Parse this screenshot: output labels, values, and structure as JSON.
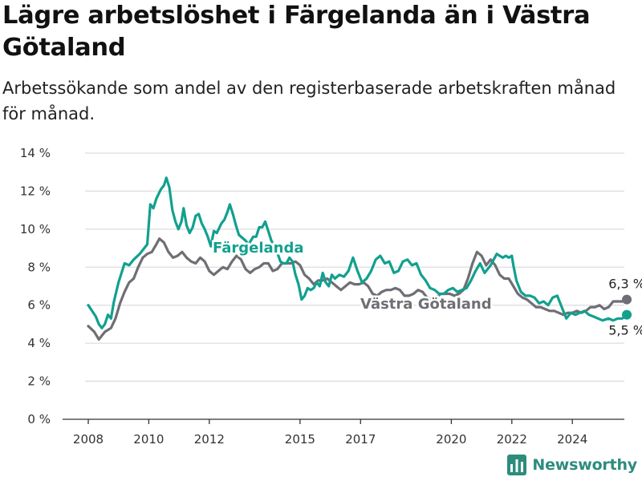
{
  "title": "Lägre arbetslöshet i Färgelanda än i Västra Götaland",
  "subtitle": "Arbetssökande som andel av den registerbaserade arbetskraften månad för månad.",
  "brand": "Newsworthy",
  "colors": {
    "Färgelanda": "#12a08f",
    "Västra Götaland": "#6f6e74",
    "brand": "#2e8c7c"
  },
  "chart_data": {
    "type": "line",
    "title": "Lägre arbetslöshet i Färgelanda än i Västra Götaland",
    "subtitle": "Arbetssökande som andel av den registerbaserade arbetskraften månad för månad.",
    "xlabel": "",
    "ylabel": "",
    "y_unit": "%",
    "ylim": [
      0,
      14
    ],
    "y_ticks": [
      0,
      2,
      4,
      6,
      8,
      10,
      12,
      14
    ],
    "y_tick_labels": [
      "0 %",
      "2 %",
      "4 %",
      "6 %",
      "8 %",
      "10 %",
      "12 %",
      "14 %"
    ],
    "x_ticks": [
      2008,
      2010,
      2012,
      2015,
      2017,
      2020,
      2022,
      2024
    ],
    "grid": true,
    "legend": "inline labels",
    "series": [
      {
        "name": "Färgelanda",
        "end_label": "5,5 %",
        "points": [
          [
            2008.0,
            6.0
          ],
          [
            2008.25,
            5.4
          ],
          [
            2008.35,
            5.0
          ],
          [
            2008.45,
            4.8
          ],
          [
            2008.55,
            5.0
          ],
          [
            2008.65,
            5.5
          ],
          [
            2008.75,
            5.3
          ],
          [
            2008.85,
            6.2
          ],
          [
            2009.0,
            7.2
          ],
          [
            2009.2,
            8.2
          ],
          [
            2009.35,
            8.1
          ],
          [
            2009.5,
            8.4
          ],
          [
            2009.7,
            8.7
          ],
          [
            2009.95,
            9.2
          ],
          [
            2010.05,
            11.3
          ],
          [
            2010.15,
            11.1
          ],
          [
            2010.25,
            11.6
          ],
          [
            2010.4,
            12.1
          ],
          [
            2010.5,
            12.3
          ],
          [
            2010.58,
            12.7
          ],
          [
            2010.68,
            12.2
          ],
          [
            2010.78,
            11.0
          ],
          [
            2010.88,
            10.4
          ],
          [
            2010.98,
            10.0
          ],
          [
            2011.08,
            10.4
          ],
          [
            2011.15,
            11.1
          ],
          [
            2011.25,
            10.2
          ],
          [
            2011.35,
            9.8
          ],
          [
            2011.45,
            10.1
          ],
          [
            2011.55,
            10.7
          ],
          [
            2011.65,
            10.8
          ],
          [
            2011.75,
            10.3
          ],
          [
            2011.85,
            10.0
          ],
          [
            2011.95,
            9.6
          ],
          [
            2012.05,
            9.1
          ],
          [
            2012.15,
            9.9
          ],
          [
            2012.25,
            9.8
          ],
          [
            2012.4,
            10.3
          ],
          [
            2012.5,
            10.5
          ],
          [
            2012.6,
            10.9
          ],
          [
            2012.68,
            11.3
          ],
          [
            2012.78,
            10.8
          ],
          [
            2012.88,
            10.2
          ],
          [
            2012.98,
            9.7
          ],
          [
            2013.2,
            9.4
          ],
          [
            2013.3,
            9.2
          ],
          [
            2013.45,
            9.6
          ],
          [
            2013.55,
            9.6
          ],
          [
            2013.65,
            10.1
          ],
          [
            2013.75,
            10.1
          ],
          [
            2013.85,
            10.4
          ],
          [
            2013.95,
            9.9
          ],
          [
            2014.05,
            9.4
          ],
          [
            2014.2,
            9.0
          ],
          [
            2014.35,
            8.3
          ],
          [
            2014.45,
            8.2
          ],
          [
            2014.55,
            8.2
          ],
          [
            2014.65,
            8.5
          ],
          [
            2014.75,
            8.3
          ],
          [
            2014.85,
            7.6
          ],
          [
            2014.95,
            7.1
          ],
          [
            2015.05,
            6.3
          ],
          [
            2015.15,
            6.5
          ],
          [
            2015.25,
            6.9
          ],
          [
            2015.35,
            6.8
          ],
          [
            2015.45,
            6.9
          ],
          [
            2015.55,
            7.2
          ],
          [
            2015.65,
            7.0
          ],
          [
            2015.75,
            7.7
          ],
          [
            2015.85,
            7.2
          ],
          [
            2015.95,
            7.0
          ],
          [
            2016.05,
            7.6
          ],
          [
            2016.15,
            7.4
          ],
          [
            2016.3,
            7.6
          ],
          [
            2016.45,
            7.5
          ],
          [
            2016.6,
            7.8
          ],
          [
            2016.75,
            8.5
          ],
          [
            2016.9,
            7.8
          ],
          [
            2017.05,
            7.2
          ],
          [
            2017.2,
            7.4
          ],
          [
            2017.35,
            7.8
          ],
          [
            2017.5,
            8.4
          ],
          [
            2017.65,
            8.6
          ],
          [
            2017.8,
            8.2
          ],
          [
            2017.95,
            8.3
          ],
          [
            2018.1,
            7.7
          ],
          [
            2018.25,
            7.8
          ],
          [
            2018.4,
            8.3
          ],
          [
            2018.55,
            8.4
          ],
          [
            2018.7,
            8.1
          ],
          [
            2018.85,
            8.2
          ],
          [
            2019.0,
            7.6
          ],
          [
            2019.15,
            7.3
          ],
          [
            2019.3,
            6.9
          ],
          [
            2019.45,
            6.8
          ],
          [
            2019.6,
            6.6
          ],
          [
            2019.75,
            6.6
          ],
          [
            2019.9,
            6.8
          ],
          [
            2020.05,
            6.9
          ],
          [
            2020.2,
            6.7
          ],
          [
            2020.35,
            6.8
          ],
          [
            2020.5,
            6.9
          ],
          [
            2020.65,
            7.3
          ],
          [
            2020.8,
            7.8
          ],
          [
            2020.95,
            8.2
          ],
          [
            2021.1,
            7.7
          ],
          [
            2021.2,
            7.9
          ],
          [
            2021.3,
            8.1
          ],
          [
            2021.4,
            8.4
          ],
          [
            2021.5,
            8.7
          ],
          [
            2021.6,
            8.6
          ],
          [
            2021.7,
            8.5
          ],
          [
            2021.8,
            8.6
          ],
          [
            2021.9,
            8.5
          ],
          [
            2022.0,
            8.6
          ],
          [
            2022.05,
            8.1
          ],
          [
            2022.15,
            7.3
          ],
          [
            2022.3,
            6.7
          ],
          [
            2022.45,
            6.5
          ],
          [
            2022.6,
            6.5
          ],
          [
            2022.75,
            6.4
          ],
          [
            2022.9,
            6.1
          ],
          [
            2023.05,
            6.2
          ],
          [
            2023.2,
            6.0
          ],
          [
            2023.35,
            6.4
          ],
          [
            2023.5,
            6.5
          ],
          [
            2023.65,
            5.9
          ],
          [
            2023.8,
            5.3
          ],
          [
            2023.95,
            5.6
          ],
          [
            2024.1,
            5.5
          ],
          [
            2024.25,
            5.6
          ],
          [
            2024.4,
            5.7
          ],
          [
            2024.55,
            5.5
          ],
          [
            2024.7,
            5.4
          ],
          [
            2024.85,
            5.3
          ],
          [
            2025.0,
            5.2
          ],
          [
            2025.2,
            5.3
          ],
          [
            2025.35,
            5.2
          ],
          [
            2025.5,
            5.3
          ],
          [
            2025.65,
            5.3
          ],
          [
            2025.8,
            5.5
          ]
        ]
      },
      {
        "name": "Västra Götaland",
        "end_label": "6,3 %",
        "points": [
          [
            2008.0,
            4.9
          ],
          [
            2008.2,
            4.6
          ],
          [
            2008.35,
            4.2
          ],
          [
            2008.55,
            4.6
          ],
          [
            2008.75,
            4.8
          ],
          [
            2008.9,
            5.3
          ],
          [
            2009.05,
            6.1
          ],
          [
            2009.2,
            6.7
          ],
          [
            2009.35,
            7.2
          ],
          [
            2009.5,
            7.4
          ],
          [
            2009.65,
            8.0
          ],
          [
            2009.8,
            8.5
          ],
          [
            2009.95,
            8.7
          ],
          [
            2010.1,
            8.8
          ],
          [
            2010.25,
            9.2
          ],
          [
            2010.35,
            9.5
          ],
          [
            2010.5,
            9.3
          ],
          [
            2010.65,
            8.8
          ],
          [
            2010.8,
            8.5
          ],
          [
            2010.95,
            8.6
          ],
          [
            2011.1,
            8.8
          ],
          [
            2011.25,
            8.5
          ],
          [
            2011.4,
            8.3
          ],
          [
            2011.55,
            8.2
          ],
          [
            2011.7,
            8.5
          ],
          [
            2011.85,
            8.3
          ],
          [
            2012.0,
            7.8
          ],
          [
            2012.15,
            7.6
          ],
          [
            2012.3,
            7.8
          ],
          [
            2012.45,
            8.0
          ],
          [
            2012.6,
            7.9
          ],
          [
            2012.75,
            8.3
          ],
          [
            2012.9,
            8.6
          ],
          [
            2013.05,
            8.4
          ],
          [
            2013.2,
            7.9
          ],
          [
            2013.35,
            7.7
          ],
          [
            2013.5,
            7.9
          ],
          [
            2013.65,
            8.0
          ],
          [
            2013.8,
            8.2
          ],
          [
            2013.95,
            8.2
          ],
          [
            2014.1,
            7.8
          ],
          [
            2014.25,
            7.9
          ],
          [
            2014.4,
            8.2
          ],
          [
            2014.55,
            8.2
          ],
          [
            2014.7,
            8.2
          ],
          [
            2014.85,
            8.3
          ],
          [
            2015.0,
            8.1
          ],
          [
            2015.15,
            7.6
          ],
          [
            2015.3,
            7.4
          ],
          [
            2015.45,
            7.1
          ],
          [
            2015.6,
            7.3
          ],
          [
            2015.75,
            7.3
          ],
          [
            2015.9,
            7.4
          ],
          [
            2016.05,
            7.2
          ],
          [
            2016.2,
            7.0
          ],
          [
            2016.35,
            6.8
          ],
          [
            2016.5,
            7.0
          ],
          [
            2016.65,
            7.2
          ],
          [
            2016.8,
            7.1
          ],
          [
            2016.95,
            7.1
          ],
          [
            2017.1,
            7.2
          ],
          [
            2017.25,
            7.0
          ],
          [
            2017.4,
            6.6
          ],
          [
            2017.55,
            6.5
          ],
          [
            2017.7,
            6.7
          ],
          [
            2017.85,
            6.8
          ],
          [
            2018.0,
            6.8
          ],
          [
            2018.15,
            6.9
          ],
          [
            2018.3,
            6.8
          ],
          [
            2018.45,
            6.5
          ],
          [
            2018.6,
            6.5
          ],
          [
            2018.75,
            6.6
          ],
          [
            2018.9,
            6.8
          ],
          [
            2019.05,
            6.7
          ],
          [
            2019.2,
            6.4
          ],
          [
            2019.35,
            6.3
          ],
          [
            2019.5,
            6.4
          ],
          [
            2019.65,
            6.6
          ],
          [
            2019.8,
            6.6
          ],
          [
            2019.95,
            6.6
          ],
          [
            2020.1,
            6.5
          ],
          [
            2020.25,
            6.6
          ],
          [
            2020.4,
            6.8
          ],
          [
            2020.55,
            7.4
          ],
          [
            2020.7,
            8.2
          ],
          [
            2020.85,
            8.8
          ],
          [
            2021.0,
            8.6
          ],
          [
            2021.15,
            8.1
          ],
          [
            2021.3,
            8.4
          ],
          [
            2021.45,
            8.1
          ],
          [
            2021.6,
            7.6
          ],
          [
            2021.75,
            7.4
          ],
          [
            2021.9,
            7.4
          ],
          [
            2022.05,
            7.0
          ],
          [
            2022.2,
            6.6
          ],
          [
            2022.35,
            6.4
          ],
          [
            2022.5,
            6.3
          ],
          [
            2022.65,
            6.1
          ],
          [
            2022.8,
            5.9
          ],
          [
            2022.95,
            5.9
          ],
          [
            2023.1,
            5.8
          ],
          [
            2023.25,
            5.7
          ],
          [
            2023.4,
            5.7
          ],
          [
            2023.55,
            5.6
          ],
          [
            2023.7,
            5.5
          ],
          [
            2023.85,
            5.6
          ],
          [
            2024.0,
            5.6
          ],
          [
            2024.15,
            5.7
          ],
          [
            2024.3,
            5.6
          ],
          [
            2024.45,
            5.7
          ],
          [
            2024.6,
            5.9
          ],
          [
            2024.75,
            5.9
          ],
          [
            2024.9,
            6.0
          ],
          [
            2025.05,
            5.8
          ],
          [
            2025.2,
            5.9
          ],
          [
            2025.35,
            6.2
          ],
          [
            2025.5,
            6.2
          ],
          [
            2025.65,
            6.2
          ],
          [
            2025.8,
            6.3
          ]
        ]
      }
    ]
  }
}
